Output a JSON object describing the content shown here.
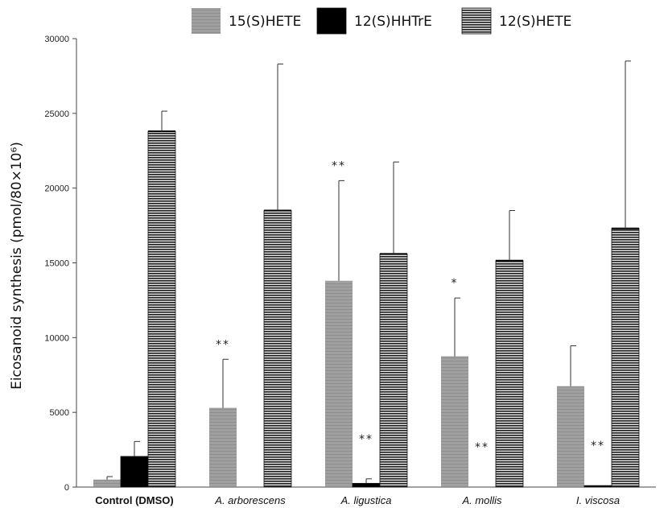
{
  "chart_data": {
    "type": "bar",
    "ylabel": "Eicosanoid synthesis (pmol/80×10⁶)",
    "ylim": [
      0,
      30000
    ],
    "yticks": [
      0,
      5000,
      10000,
      15000,
      20000,
      25000,
      30000
    ],
    "grid": false,
    "legend_position": "top",
    "categories": [
      {
        "label": "Control (DMSO)",
        "style": "bold"
      },
      {
        "label": "A. arborescens",
        "style": "italic"
      },
      {
        "label": "A. ligustica",
        "style": "italic"
      },
      {
        "label": "A. mollis",
        "style": "italic"
      },
      {
        "label": "I. viscosa",
        "style": "italic"
      }
    ],
    "series": [
      {
        "name": "15(S)HETE",
        "color": "#9a9a9a",
        "pattern": "solid-gray",
        "values": [
          500,
          5300,
          13800,
          8750,
          6750
        ],
        "errors": [
          200,
          3250,
          6700,
          3900,
          2700
        ],
        "significance": [
          "",
          "**",
          "**",
          "*",
          ""
        ]
      },
      {
        "name": "12(S)HHTrE",
        "color": "#000000",
        "pattern": "solid-black",
        "values": [
          2050,
          0,
          250,
          0,
          100
        ],
        "errors": [
          1000,
          0,
          300,
          0,
          0
        ],
        "significance": [
          "",
          "",
          "**",
          "**",
          "**"
        ]
      },
      {
        "name": "12(S)HETE",
        "color": "#2b2b2b",
        "pattern": "horizontal-stripes",
        "values": [
          23800,
          18500,
          15600,
          15150,
          17300
        ],
        "errors": [
          1350,
          9800,
          6150,
          3350,
          11200
        ],
        "significance": [
          "",
          "",
          "",
          "",
          ""
        ]
      }
    ]
  }
}
